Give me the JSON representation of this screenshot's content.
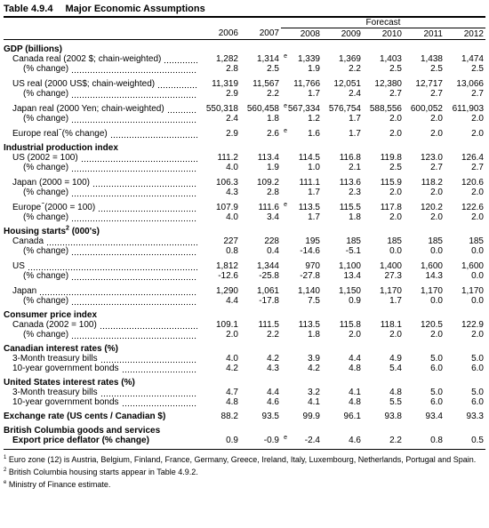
{
  "title": {
    "number": "Table 4.9.4",
    "text": "Major Economic Assumptions"
  },
  "forecast_label": "Forecast",
  "years": [
    "2006",
    "2007",
    "2008",
    "2009",
    "2010",
    "2011",
    "2012"
  ],
  "sections": [
    {
      "heading": "GDP (billions)",
      "groups": [
        {
          "rows": [
            {
              "label": "Canada real (2002 $; chain-weighted)",
              "values": [
                "1,282",
                "1,314",
                "1,339",
                "1,369",
                "1,403",
                "1,438",
                "1,474"
              ],
              "notes": [
                null,
                "e",
                null,
                null,
                null,
                null,
                null
              ]
            },
            {
              "label": "(% change)",
              "values": [
                "2.8",
                "2.5",
                "1.9",
                "2.2",
                "2.5",
                "2.5",
                "2.5"
              ]
            }
          ]
        },
        {
          "rows": [
            {
              "label": "US real (2000 US$; chain-weighted)",
              "values": [
                "11,319",
                "11,567",
                "11,766",
                "12,051",
                "12,380",
                "12,717",
                "13,066"
              ]
            },
            {
              "label": "(% change)",
              "values": [
                "2.9",
                "2.2",
                "1.7",
                "2.4",
                "2.7",
                "2.7",
                "2.7"
              ]
            }
          ]
        },
        {
          "rows": [
            {
              "label": "Japan real (2000 Yen; chain-weighted)",
              "values": [
                "550,318",
                "560,458",
                "567,334",
                "576,754",
                "588,556",
                "600,052",
                "611,903"
              ],
              "notes": [
                null,
                "e",
                null,
                null,
                null,
                null,
                null
              ]
            },
            {
              "label": "(% change)",
              "values": [
                "2.4",
                "1.8",
                "1.2",
                "1.7",
                "2.0",
                "2.0",
                "2.0"
              ]
            }
          ]
        },
        {
          "rows": [
            {
              "label": "Europe real",
              "sup": "1",
              "label_after": "(% change)",
              "values": [
                "2.9",
                "2.6",
                "1.6",
                "1.7",
                "2.0",
                "2.0",
                "2.0"
              ],
              "notes": [
                null,
                "e",
                null,
                null,
                null,
                null,
                null
              ]
            }
          ]
        }
      ]
    },
    {
      "heading": "Industrial production index",
      "groups": [
        {
          "rows": [
            {
              "label": "US (2002 = 100)",
              "values": [
                "111.2",
                "113.4",
                "114.5",
                "116.8",
                "119.8",
                "123.0",
                "126.4"
              ]
            },
            {
              "label": "(% change)",
              "values": [
                "4.0",
                "1.9",
                "1.0",
                "2.1",
                "2.5",
                "2.7",
                "2.7"
              ]
            }
          ]
        },
        {
          "rows": [
            {
              "label": "Japan (2000 = 100)",
              "values": [
                "106.3",
                "109.2",
                "111.1",
                "113.6",
                "115.9",
                "118.2",
                "120.6"
              ]
            },
            {
              "label": "(% change)",
              "values": [
                "4.3",
                "2.8",
                "1.7",
                "2.3",
                "2.0",
                "2.0",
                "2.0"
              ]
            }
          ]
        },
        {
          "rows": [
            {
              "label": "Europe",
              "sup": "1",
              "label_after": "(2000 = 100)",
              "values": [
                "107.9",
                "111.6",
                "113.5",
                "115.5",
                "117.8",
                "120.2",
                "122.6"
              ],
              "notes": [
                null,
                "e",
                null,
                null,
                null,
                null,
                null
              ]
            },
            {
              "label": "(% change)",
              "values": [
                "4.0",
                "3.4",
                "1.7",
                "1.8",
                "2.0",
                "2.0",
                "2.0"
              ]
            }
          ]
        }
      ]
    },
    {
      "heading": "Housing starts",
      "heading_sup": "2",
      "heading_after": "(000's)",
      "groups": [
        {
          "rows": [
            {
              "label": "Canada",
              "values": [
                "227",
                "228",
                "195",
                "185",
                "185",
                "185",
                "185"
              ]
            },
            {
              "label": "(% change)",
              "values": [
                "0.8",
                "0.4",
                "-14.6",
                "-5.1",
                "0.0",
                "0.0",
                "0.0"
              ]
            }
          ]
        },
        {
          "rows": [
            {
              "label": "US",
              "values": [
                "1,812",
                "1,344",
                "970",
                "1,100",
                "1,400",
                "1,600",
                "1,600"
              ]
            },
            {
              "label": "(% change)",
              "values": [
                "-12.6",
                "-25.8",
                "-27.8",
                "13.4",
                "27.3",
                "14.3",
                "0.0"
              ]
            }
          ]
        },
        {
          "rows": [
            {
              "label": "Japan",
              "values": [
                "1,290",
                "1,061",
                "1,140",
                "1,150",
                "1,170",
                "1,170",
                "1,170"
              ]
            },
            {
              "label": "(% change)",
              "values": [
                "4.4",
                "-17.8",
                "7.5",
                "0.9",
                "1.7",
                "0.0",
                "0.0"
              ]
            }
          ]
        }
      ]
    },
    {
      "heading": "Consumer price index",
      "groups": [
        {
          "rows": [
            {
              "label": "Canada (2002 = 100)",
              "values": [
                "109.1",
                "111.5",
                "113.5",
                "115.8",
                "118.1",
                "120.5",
                "122.9"
              ]
            },
            {
              "label": "(% change)",
              "values": [
                "2.0",
                "2.2",
                "1.8",
                "2.0",
                "2.0",
                "2.0",
                "2.0"
              ]
            }
          ]
        }
      ]
    },
    {
      "heading": "Canadian interest rates (%)",
      "groups": [
        {
          "rows": [
            {
              "label": "3-Month treasury bills",
              "values": [
                "4.0",
                "4.2",
                "3.9",
                "4.4",
                "4.9",
                "5.0",
                "5.0"
              ]
            },
            {
              "label": "10-year government bonds",
              "values": [
                "4.2",
                "4.3",
                "4.2",
                "4.8",
                "5.4",
                "6.0",
                "6.0"
              ]
            }
          ]
        }
      ]
    },
    {
      "heading": "United States interest rates (%)",
      "groups": [
        {
          "rows": [
            {
              "label": "3-Month treasury bills",
              "values": [
                "4.7",
                "4.4",
                "3.2",
                "4.1",
                "4.8",
                "5.0",
                "5.0"
              ]
            },
            {
              "label": "10-year government bonds",
              "values": [
                "4.8",
                "4.6",
                "4.1",
                "4.8",
                "5.5",
                "6.0",
                "6.0"
              ]
            }
          ]
        }
      ]
    },
    {
      "heading": "Exchange rate (US cents / Canadian $)",
      "values": [
        "88.2",
        "93.5",
        "99.9",
        "96.1",
        "93.8",
        "93.4",
        "93.3"
      ]
    },
    {
      "heading": "British Columbia goods and services",
      "groups": [
        {
          "rows": [
            {
              "label": "Export price deflator (% change)",
              "bold": true,
              "values": [
                "0.9",
                "-0.9",
                "-2.4",
                "4.6",
                "2.2",
                "0.8",
                "0.5"
              ],
              "notes": [
                null,
                "e",
                null,
                null,
                null,
                null,
                null
              ]
            }
          ]
        }
      ]
    }
  ],
  "footnotes": [
    {
      "mark": "1",
      "text": "Euro zone (12) is Austria, Belgium, Finland, France, Germany, Greece, Ireland, Italy, Luxembourg, Netherlands, Portugal and Spain."
    },
    {
      "mark": "2",
      "text": "British Columbia housing starts appear in Table 4.9.2."
    },
    {
      "mark": "e",
      "text": "Ministry of Finance estimate."
    }
  ]
}
